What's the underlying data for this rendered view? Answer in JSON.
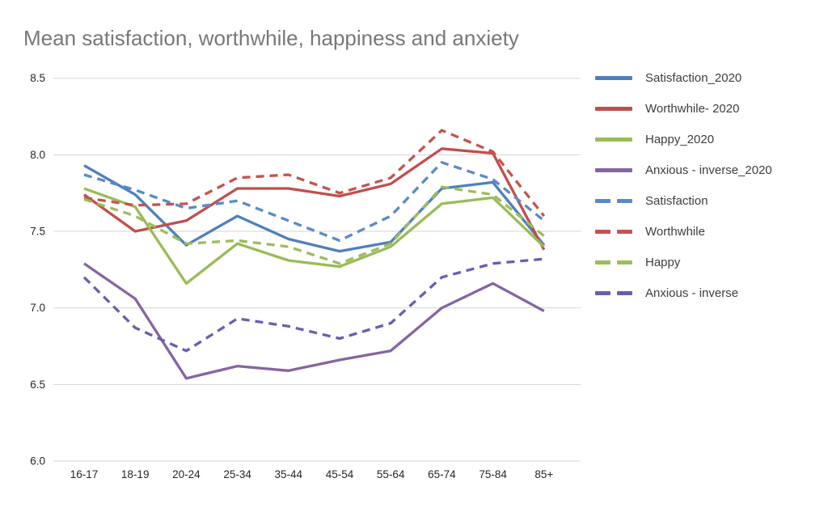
{
  "chart_data": {
    "type": "line",
    "title": "Mean satisfaction, worthwhile, happiness and anxiety",
    "xlabel": "",
    "ylabel": "",
    "categories": [
      "16-17",
      "18-19",
      "20-24",
      "25-34",
      "35-44",
      "45-54",
      "55-64",
      "65-74",
      "75-84",
      "85+"
    ],
    "ylim": [
      6.0,
      8.5
    ],
    "ytick_step": 0.5,
    "yticks": [
      "8.5",
      "8.0",
      "7.5",
      "7.0",
      "6.5",
      "6.0"
    ],
    "grid": true,
    "legend_position": "right",
    "series": [
      {
        "name": "Satisfaction_2020",
        "color": "#4e80bc",
        "style": "solid",
        "values": [
          7.93,
          7.74,
          7.41,
          7.6,
          7.45,
          7.37,
          7.43,
          7.78,
          7.82,
          7.41
        ]
      },
      {
        "name": "Worthwhile- 2020",
        "color": "#bf4f4c",
        "style": "solid",
        "values": [
          7.74,
          7.5,
          7.57,
          7.78,
          7.78,
          7.73,
          7.81,
          8.04,
          8.01,
          7.38
        ]
      },
      {
        "name": "Happy_2020",
        "color": "#9abb58",
        "style": "solid",
        "values": [
          7.78,
          7.66,
          7.16,
          7.42,
          7.31,
          7.27,
          7.4,
          7.68,
          7.72,
          7.4
        ]
      },
      {
        "name": "Anxious - inverse_2020",
        "color": "#8565a3",
        "style": "solid",
        "values": [
          7.29,
          7.06,
          6.54,
          6.62,
          6.59,
          6.66,
          6.72,
          7.0,
          7.16,
          6.98
        ]
      },
      {
        "name": "Satisfaction",
        "color": "#5a8ac6",
        "style": "dashed",
        "values": [
          7.87,
          7.77,
          7.65,
          7.7,
          7.57,
          7.44,
          7.6,
          7.95,
          7.84,
          7.57
        ]
      },
      {
        "name": "Worthwhile",
        "color": "#c4534f",
        "style": "dashed",
        "values": [
          7.72,
          7.67,
          7.68,
          7.85,
          7.87,
          7.75,
          7.85,
          8.16,
          8.02,
          7.6
        ]
      },
      {
        "name": "Happy",
        "color": "#9cbd5b",
        "style": "dashed",
        "values": [
          7.71,
          7.6,
          7.42,
          7.44,
          7.4,
          7.29,
          7.42,
          7.79,
          7.74,
          7.47
        ]
      },
      {
        "name": "Anxious - inverse",
        "color": "#6d5cae",
        "style": "dashed",
        "values": [
          7.2,
          6.87,
          6.72,
          6.93,
          6.88,
          6.8,
          6.9,
          7.2,
          7.29,
          7.32
        ]
      }
    ]
  }
}
